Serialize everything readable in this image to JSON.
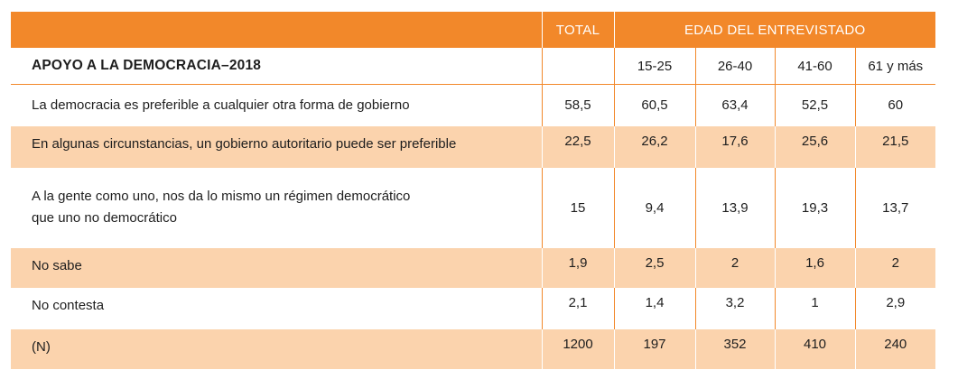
{
  "header": {
    "total": "TOTAL",
    "age_group": "EDAD DEL ENTREVISTADO"
  },
  "subheader": {
    "title": "APOYO A LA DEMOCRACIA–2018",
    "age_columns": [
      "15-25",
      "26-40",
      "41-60",
      "61 y más"
    ]
  },
  "rows": [
    {
      "label_lines": [
        "La democracia es preferible a cualquier otra forma de gobierno"
      ],
      "total": "58,5",
      "values": [
        "60,5",
        "63,4",
        "52,5",
        "60"
      ]
    },
    {
      "label_lines": [
        "En algunas circunstancias, un gobierno autoritario puede ser preferible"
      ],
      "total": "22,5",
      "values": [
        "26,2",
        "17,6",
        "25,6",
        "21,5"
      ]
    },
    {
      "label_lines": [
        "A la gente como uno, nos da lo mismo un régimen democrático",
        "que uno no democrático"
      ],
      "total": "15",
      "values": [
        "9,4",
        "13,9",
        "19,3",
        "13,7"
      ]
    },
    {
      "label_lines": [
        "No sabe"
      ],
      "total": "1,9",
      "values": [
        "2,5",
        "2",
        "1,6",
        "2"
      ]
    },
    {
      "label_lines": [
        "No contesta"
      ],
      "total": "2,1",
      "values": [
        "1,4",
        "3,2",
        "1",
        "2,9"
      ]
    },
    {
      "label_lines": [
        "(N)"
      ],
      "total": "1200",
      "values": [
        "197",
        "352",
        "410",
        "240"
      ]
    }
  ],
  "colors": {
    "header_bg": "#f2882a",
    "alt_row_bg": "#fbd3ad"
  }
}
